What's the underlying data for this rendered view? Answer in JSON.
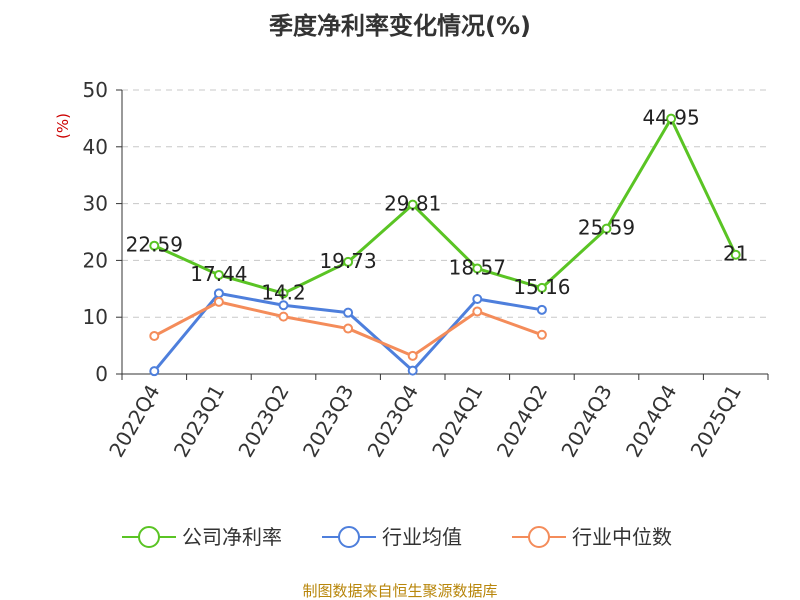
{
  "source_note": "制图数据来自恒生聚源数据库",
  "chart_data": {
    "type": "line",
    "title": "季度净利率变化情况(%)",
    "ylabel": "(%)",
    "xlabel": "",
    "ylim": [
      0,
      50
    ],
    "yticks": [
      0,
      10,
      20,
      30,
      40,
      50
    ],
    "grid": true,
    "legend_position": "bottom",
    "categories": [
      "2022Q4",
      "2023Q1",
      "2023Q2",
      "2023Q3",
      "2023Q4",
      "2024Q1",
      "2024Q2",
      "2024Q3",
      "2024Q4",
      "2025Q1"
    ],
    "series": [
      {
        "name": "公司净利率",
        "color": "#5ac424",
        "labeled": true,
        "values": [
          22.59,
          17.44,
          14.2,
          19.73,
          29.81,
          18.57,
          15.16,
          25.59,
          44.95,
          21
        ]
      },
      {
        "name": "行业均值",
        "color": "#4e7fdc",
        "labeled": false,
        "values": [
          0.5,
          14.2,
          12.1,
          10.8,
          0.6,
          13.2,
          11.3,
          null,
          null,
          null
        ]
      },
      {
        "name": "行业中位数",
        "color": "#f48c5a",
        "labeled": false,
        "values": [
          6.7,
          12.7,
          10.1,
          8.0,
          3.2,
          11.0,
          6.9,
          null,
          null,
          null
        ]
      }
    ]
  }
}
